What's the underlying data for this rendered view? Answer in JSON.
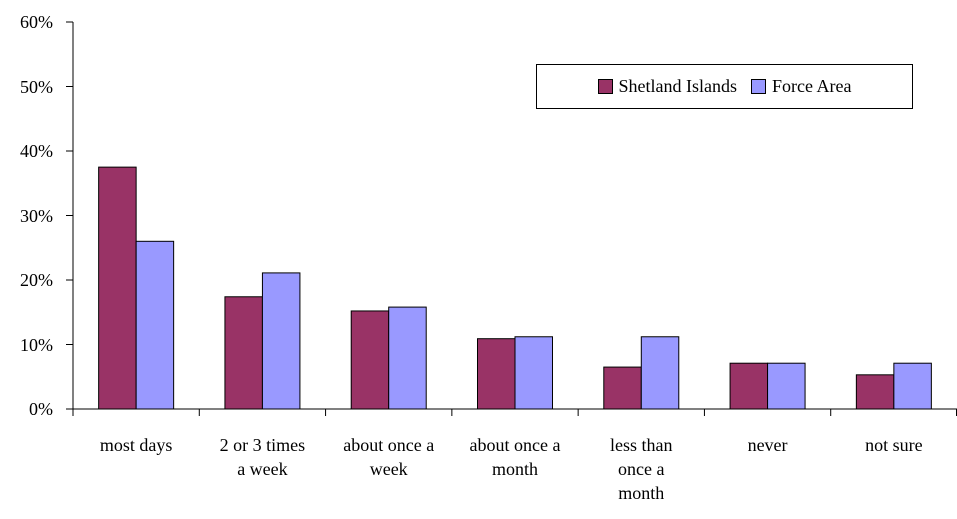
{
  "chart_data": {
    "type": "bar",
    "categories": [
      "most days",
      "2 or 3 times a week",
      "about once a week",
      "about once a month",
      "less than once a month",
      "never",
      "not sure"
    ],
    "series": [
      {
        "name": "Shetland Islands",
        "color": "#993366",
        "values": [
          37.5,
          17.4,
          15.2,
          10.9,
          6.5,
          7.1,
          5.3
        ]
      },
      {
        "name": "Force Area",
        "color": "#9999ff",
        "values": [
          26.0,
          21.1,
          15.8,
          11.2,
          11.2,
          7.1,
          7.1
        ]
      }
    ],
    "ylim": [
      0,
      60
    ],
    "yticks": [
      {
        "value": 0,
        "label": "0%"
      },
      {
        "value": 10,
        "label": "10%"
      },
      {
        "value": 20,
        "label": "20%"
      },
      {
        "value": 30,
        "label": "30%"
      },
      {
        "value": 40,
        "label": "40%"
      },
      {
        "value": 50,
        "label": "50%"
      },
      {
        "value": 60,
        "label": "60%"
      }
    ],
    "legend": "upper right"
  }
}
